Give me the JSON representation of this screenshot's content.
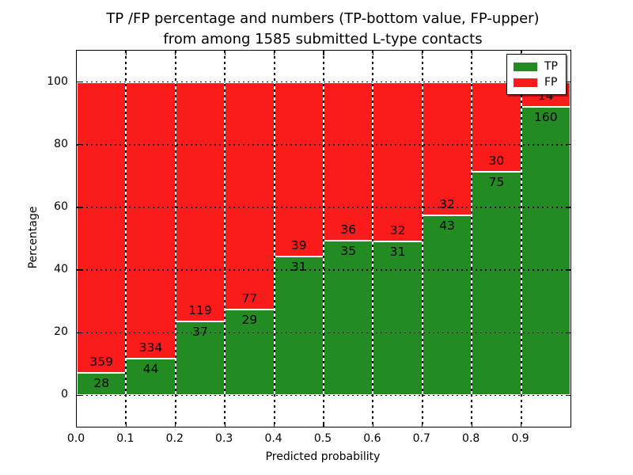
{
  "chart_data": {
    "type": "bar",
    "subtype": "stacked-percentage",
    "title_line1": "TP /FP percentage and numbers (TP-bottom value, FP-upper)",
    "title_line2": "from among 1585 submitted L-type contacts",
    "xlabel": "Predicted probability",
    "ylabel": "Percentage",
    "x_tick_labels": [
      "0.0",
      "0.1",
      "0.2",
      "0.3",
      "0.4",
      "0.5",
      "0.6",
      "0.7",
      "0.8",
      "0.9"
    ],
    "y_tick_values": [
      0,
      20,
      40,
      60,
      80,
      100
    ],
    "ylim": [
      -10,
      110
    ],
    "x_bins": 10,
    "total_contacts": 1585,
    "grid": "dotted",
    "legend_position": "upper-right",
    "colors": {
      "tp": "#228B22",
      "fp": "#FB1B1B"
    },
    "legend": [
      {
        "label": "TP",
        "series": "tp"
      },
      {
        "label": "FP",
        "series": "fp"
      }
    ],
    "bars": [
      {
        "bin": "0.0-0.1",
        "tp": 28,
        "fp": 359
      },
      {
        "bin": "0.1-0.2",
        "tp": 44,
        "fp": 334
      },
      {
        "bin": "0.2-0.3",
        "tp": 37,
        "fp": 119
      },
      {
        "bin": "0.3-0.4",
        "tp": 29,
        "fp": 77
      },
      {
        "bin": "0.4-0.5",
        "tp": 31,
        "fp": 39
      },
      {
        "bin": "0.5-0.6",
        "tp": 35,
        "fp": 36
      },
      {
        "bin": "0.6-0.7",
        "tp": 31,
        "fp": 32
      },
      {
        "bin": "0.7-0.8",
        "tp": 43,
        "fp": 32
      },
      {
        "bin": "0.8-0.9",
        "tp": 75,
        "fp": 30
      },
      {
        "bin": "0.9-1.0",
        "tp": 160,
        "fp": 14
      }
    ]
  }
}
